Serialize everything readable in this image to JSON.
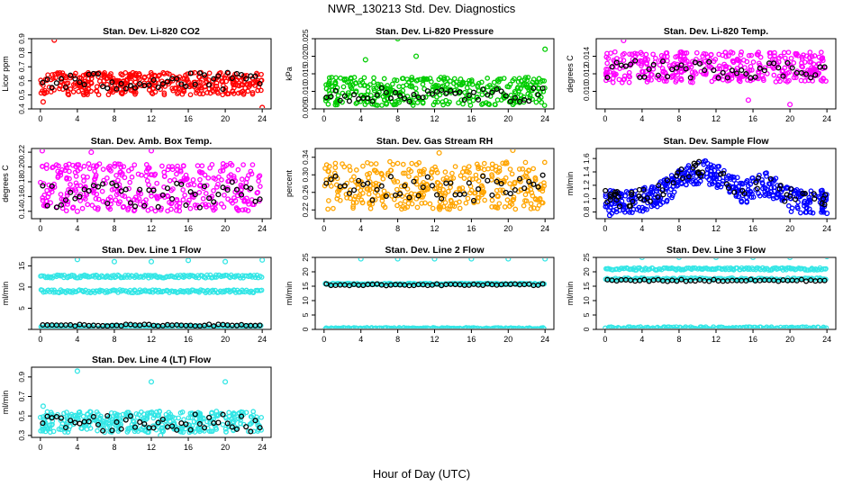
{
  "figure": {
    "title": "NWR_130213  Std. Dev. Diagnostics",
    "xlabel": "Hour of Day (UTC)"
  },
  "x_ticks": [
    0,
    4,
    8,
    12,
    16,
    20,
    24
  ],
  "chart_data": [
    {
      "type": "scatter",
      "title": "Stan. Dev. Li-820 CO2",
      "ylabel": "Licor ppm",
      "xlim": [
        0,
        24
      ],
      "ylim": [
        0.4,
        0.9
      ],
      "yticks": [
        0.4,
        0.5,
        0.6,
        0.7,
        0.8,
        0.9
      ],
      "yticklabels": [
        "0.4",
        "0.5",
        "0.6",
        "0.7",
        "0.8",
        "0.9"
      ],
      "colors": {
        "primary": "#ff0000",
        "secondary": "#000000"
      },
      "series": [
        {
          "band_lo": 0.5,
          "band_hi": 0.66,
          "outliers": [
            [
              1.5,
              0.89
            ],
            [
              24,
              0.41
            ],
            [
              0.3,
              0.45
            ]
          ]
        },
        {
          "band_lo": 0.53,
          "band_hi": 0.66,
          "outliers": []
        }
      ]
    },
    {
      "type": "scatter",
      "title": "Stan. Dev. Li-820 Pressure",
      "ylabel": "kPa",
      "xlim": [
        0,
        24
      ],
      "ylim": [
        0.005,
        0.025
      ],
      "yticks": [
        0.005,
        0.01,
        0.015,
        0.02,
        0.025
      ],
      "yticklabels": [
        "0.005",
        "0.010",
        "0.015",
        "0.020",
        "0.025"
      ],
      "colors": {
        "primary": "#00cc00",
        "secondary": "#000000"
      },
      "series": [
        {
          "band_lo": 0.006,
          "band_hi": 0.014,
          "outliers": [
            [
              8,
              0.025
            ],
            [
              24,
              0.022
            ],
            [
              10,
              0.02
            ],
            [
              4.5,
              0.019
            ]
          ]
        },
        {
          "band_lo": 0.007,
          "band_hi": 0.011,
          "outliers": []
        }
      ]
    },
    {
      "type": "scatter",
      "title": "Stan. Dev. Li-820 Temp.",
      "ylabel": "degrees C",
      "xlim": [
        0,
        24
      ],
      "ylim": [
        0.008,
        0.016
      ],
      "yticks": [
        0.01,
        0.012,
        0.014
      ],
      "yticklabels": [
        "0.010",
        "0.012",
        "0.014"
      ],
      "colors": {
        "primary": "#ff00ff",
        "secondary": "#000000"
      },
      "series": [
        {
          "band_lo": 0.011,
          "band_hi": 0.0145,
          "outliers": [
            [
              2,
              0.0158
            ],
            [
              20,
              0.0085
            ],
            [
              15.5,
              0.009
            ]
          ]
        },
        {
          "band_lo": 0.0115,
          "band_hi": 0.0135,
          "outliers": []
        }
      ]
    },
    {
      "type": "scatter",
      "title": "Stan. Dev. Amb. Box Temp.",
      "ylabel": "degrees C",
      "xlim": [
        0,
        24
      ],
      "ylim": [
        0.13,
        0.225
      ],
      "yticks": [
        0.14,
        0.16,
        0.18,
        0.2,
        0.22
      ],
      "yticklabels": [
        "0.14",
        "0.16",
        "0.18",
        "0.20",
        "0.22"
      ],
      "colors": {
        "primary": "#ff00ff",
        "secondary": "#000000"
      },
      "series": [
        {
          "band_lo": 0.14,
          "band_hi": 0.205,
          "outliers": [
            [
              0.2,
              0.222
            ],
            [
              5.5,
              0.22
            ],
            [
              12,
              0.222
            ],
            [
              4,
              0.14
            ]
          ]
        },
        {
          "band_lo": 0.145,
          "band_hi": 0.18,
          "outliers": []
        }
      ]
    },
    {
      "type": "scatter",
      "title": "Stan. Dev. Gas Stream RH",
      "ylabel": "percent",
      "xlim": [
        0,
        24
      ],
      "ylim": [
        0.2,
        0.36
      ],
      "yticks": [
        0.22,
        0.26,
        0.3,
        0.34
      ],
      "yticklabels": [
        "0.22",
        "0.26",
        "0.30",
        "0.34"
      ],
      "colors": {
        "primary": "#ffa500",
        "secondary": "#000000"
      },
      "series": [
        {
          "band_lo": 0.22,
          "band_hi": 0.33,
          "outliers": [
            [
              20.5,
              0.356
            ],
            [
              12.5,
              0.35
            ]
          ]
        },
        {
          "band_lo": 0.24,
          "band_hi": 0.3,
          "outliers": []
        }
      ]
    },
    {
      "type": "scatter",
      "title": "Stan. Dev. Sample Flow",
      "ylabel": "ml/min",
      "xlim": [
        0,
        24
      ],
      "ylim": [
        0.7,
        1.75
      ],
      "yticks": [
        0.8,
        1.0,
        1.2,
        1.4,
        1.6
      ],
      "yticklabels": [
        "0.8",
        "1.0",
        "1.2",
        "1.4",
        "1.6"
      ],
      "colors": {
        "primary": "#0000ff",
        "secondary": "#000000"
      },
      "profile": "sample_flow",
      "series": [
        {
          "band_lo": 0.0,
          "band_hi": 0.0,
          "outliers": [
            [
              24,
              0.78
            ],
            [
              0.5,
              0.75
            ]
          ]
        },
        {
          "band_lo": 0.0,
          "band_hi": 0.0,
          "outliers": []
        }
      ]
    },
    {
      "type": "scatter",
      "title": "Stan. Dev. Line 1 Flow",
      "ylabel": "ml/min",
      "xlim": [
        0,
        24
      ],
      "ylim": [
        0,
        17
      ],
      "yticks": [
        0,
        5,
        10,
        15
      ],
      "yticklabels": [
        "",
        "5",
        "10",
        "15"
      ],
      "colors": {
        "primary": "#33e6e6",
        "secondary": "#000000"
      },
      "series": [
        {
          "levels": [
            12.5,
            9.0,
            0.6
          ],
          "spread": 0.35,
          "outliers": [
            [
              4,
              16.5
            ],
            [
              8,
              16
            ],
            [
              12,
              16
            ],
            [
              16,
              16.3
            ],
            [
              20,
              16
            ],
            [
              24,
              16.4
            ]
          ]
        },
        {
          "levels": [
            1.0
          ],
          "spread": 0.2,
          "outliers": []
        }
      ]
    },
    {
      "type": "scatter",
      "title": "Stan. Dev. Line 2 Flow",
      "ylabel": "ml/min",
      "xlim": [
        0,
        24
      ],
      "ylim": [
        0,
        25
      ],
      "yticks": [
        0,
        5,
        10,
        15,
        20,
        25
      ],
      "yticklabels": [
        "0",
        "5",
        "10",
        "15",
        "20",
        "25"
      ],
      "colors": {
        "primary": "#33e6e6",
        "secondary": "#000000"
      },
      "series": [
        {
          "levels": [
            15.8,
            0.4
          ],
          "spread": 0.25,
          "outliers": [
            [
              4,
              24.5
            ],
            [
              8,
              24.5
            ],
            [
              12,
              24.5
            ],
            [
              16,
              24.5
            ],
            [
              20,
              24.5
            ],
            [
              24,
              24.5
            ]
          ]
        },
        {
          "levels": [
            15.5
          ],
          "spread": 0.3,
          "outliers": []
        }
      ]
    },
    {
      "type": "scatter",
      "title": "Stan. Dev. Line 3 Flow",
      "ylabel": "ml/min",
      "xlim": [
        0,
        24
      ],
      "ylim": [
        0,
        25
      ],
      "yticks": [
        0,
        5,
        10,
        15,
        20,
        25
      ],
      "yticklabels": [
        "0",
        "5",
        "10",
        "15",
        "20",
        "25"
      ],
      "colors": {
        "primary": "#33e6e6",
        "secondary": "#000000"
      },
      "series": [
        {
          "levels": [
            21.0,
            17.5,
            0.5
          ],
          "spread": 0.4,
          "outliers": [
            [
              4,
              25
            ],
            [
              8,
              25
            ],
            [
              12,
              25
            ],
            [
              16,
              25
            ],
            [
              20,
              25
            ],
            [
              24,
              25.3
            ]
          ]
        },
        {
          "levels": [
            17.0
          ],
          "spread": 0.35,
          "outliers": []
        }
      ]
    },
    {
      "type": "scatter",
      "title": "Stan. Dev. Line 4 (LT) Flow",
      "ylabel": "ml/min",
      "xlim": [
        0,
        24
      ],
      "ylim": [
        0.28,
        1.0
      ],
      "yticks": [
        0.3,
        0.5,
        0.7,
        0.9
      ],
      "yticklabels": [
        "0.3",
        "0.5",
        "0.7",
        "0.9"
      ],
      "colors": {
        "primary": "#33e6e6",
        "secondary": "#000000"
      },
      "series": [
        {
          "band_lo": 0.33,
          "band_hi": 0.55,
          "outliers": [
            [
              4,
              0.96
            ],
            [
              12,
              0.85
            ],
            [
              20,
              0.85
            ],
            [
              0.3,
              0.6
            ],
            [
              13,
              0.3
            ]
          ]
        },
        {
          "band_lo": 0.34,
          "band_hi": 0.52,
          "outliers": []
        }
      ]
    }
  ]
}
